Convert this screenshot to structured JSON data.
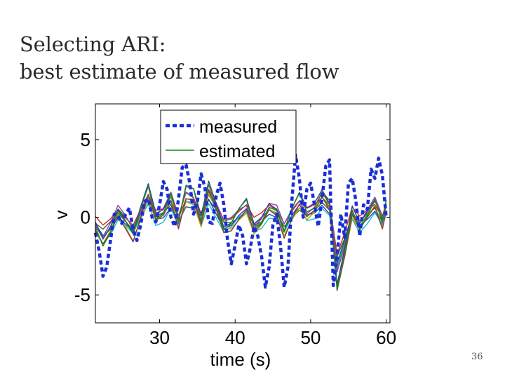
{
  "slide": {
    "title_line1": "Selecting ARI:",
    "title_line2": "best estimate of measured flow",
    "page_number": "36"
  },
  "chart_data": {
    "type": "line",
    "title": "",
    "xlabel": "time (s)",
    "ylabel": "v",
    "xlim": [
      21.5,
      60.5
    ],
    "ylim": [
      -6.8,
      7.3
    ],
    "xticks": [
      30,
      40,
      50,
      60
    ],
    "xtick_labels": [
      "30",
      "40",
      "50",
      "60"
    ],
    "yticks": [
      -5,
      0,
      5
    ],
    "ytick_labels": [
      "-5",
      "0",
      "5"
    ],
    "grid": false,
    "legend": {
      "position": "top",
      "entries": [
        "measured",
        "estimated"
      ]
    },
    "colors": {
      "measured": "#1a2fd6",
      "estimated_legend": "#1a8a1a",
      "estimated_lines": [
        "#2d6e2d",
        "#d62728",
        "#1f3fb4",
        "#17becf",
        "#2ca02c",
        "#9a3fb0",
        "#b5a52a",
        "#7f3f3f",
        "#3b3b9e",
        "#1a8a1a"
      ]
    },
    "series": [
      {
        "name": "measured",
        "x": [
          21.5,
          22.0,
          22.5,
          23.0,
          23.5,
          24.0,
          24.5,
          25.0,
          25.5,
          26.0,
          26.5,
          27.0,
          27.5,
          28.0,
          28.5,
          29.0,
          29.5,
          30.0,
          30.5,
          31.0,
          31.5,
          32.0,
          32.5,
          33.0,
          33.5,
          34.0,
          34.5,
          35.0,
          35.5,
          36.0,
          36.5,
          37.0,
          37.5,
          38.0,
          38.5,
          39.0,
          39.5,
          40.0,
          40.5,
          41.0,
          41.5,
          42.0,
          42.5,
          43.0,
          43.5,
          44.0,
          44.5,
          45.0,
          45.5,
          46.0,
          46.5,
          47.0,
          47.5,
          48.0,
          48.5,
          49.0,
          49.5,
          50.0,
          50.5,
          51.0,
          51.5,
          52.0,
          52.5,
          53.0,
          53.5,
          54.0,
          54.5,
          55.0,
          55.5,
          56.0,
          56.5,
          57.0,
          57.5,
          58.0,
          58.5,
          59.0,
          59.5,
          60.0
        ],
        "values": [
          -1.0,
          -2.2,
          -3.8,
          -3.2,
          -1.5,
          0.2,
          0.1,
          -0.4,
          0.2,
          0.6,
          -0.8,
          -1.5,
          -0.5,
          1.0,
          1.2,
          0.0,
          -0.3,
          0.8,
          2.3,
          1.8,
          0.0,
          -0.6,
          1.2,
          3.2,
          3.4,
          2.2,
          0.2,
          1.0,
          2.8,
          1.9,
          -0.3,
          -0.4,
          1.4,
          2.2,
          0.8,
          -1.5,
          -3.0,
          -1.8,
          -0.5,
          -1.2,
          -3.0,
          -2.0,
          -0.6,
          -1.2,
          -2.5,
          -4.5,
          -3.2,
          -0.5,
          0.2,
          -1.8,
          -4.5,
          -3.2,
          1.0,
          4.0,
          2.5,
          0.0,
          1.8,
          2.2,
          0.8,
          -0.6,
          1.2,
          3.3,
          3.7,
          -4.4,
          -2.5,
          0.2,
          -1.3,
          2.2,
          2.5,
          1.0,
          -1.2,
          0.8,
          0.5,
          3.1,
          2.5,
          3.8,
          2.7,
          0.0
        ]
      },
      {
        "name": "estimated",
        "x": [
          21.5,
          22.5,
          23.5,
          24.5,
          25.5,
          26.5,
          27.5,
          28.5,
          29.5,
          30.5,
          31.5,
          32.5,
          33.5,
          34.5,
          35.5,
          36.5,
          37.5,
          38.5,
          39.5,
          40.5,
          41.5,
          42.5,
          43.5,
          44.5,
          45.5,
          46.5,
          47.5,
          48.5,
          49.5,
          50.5,
          51.5,
          52.5,
          53.0,
          53.5,
          54.5,
          55.5,
          56.5,
          57.5,
          58.5,
          59.5,
          60.0
        ],
        "values": [
          -0.6,
          -1.4,
          -0.7,
          0.3,
          -0.3,
          -1.0,
          0.2,
          1.3,
          -0.1,
          0.2,
          1.1,
          -0.3,
          1.3,
          1.1,
          -0.3,
          1.5,
          0.5,
          -0.6,
          -0.4,
          0.2,
          0.6,
          -0.7,
          -0.3,
          0.5,
          0.3,
          -0.8,
          0.2,
          0.9,
          0.1,
          0.4,
          1.2,
          0.6,
          -1.2,
          -3.6,
          -1.9,
          0.2,
          -0.6,
          0.1,
          0.8,
          -0.3,
          0.6
        ]
      }
    ]
  }
}
